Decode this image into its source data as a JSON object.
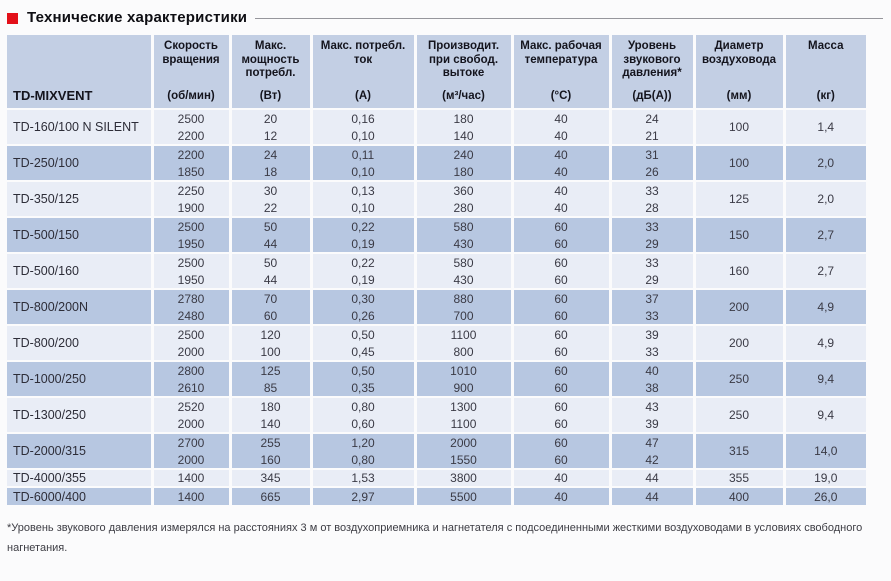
{
  "title": "Технические характеристики",
  "colors": {
    "accent_red": "#e31019",
    "header_bg": "#c3cfe4",
    "row_light": "#e9edf6",
    "row_dark": "#b7c7e1"
  },
  "table": {
    "first_col_header": "TD-MIXVENT",
    "columns": [
      {
        "title": "Скорость вращения",
        "unit": "(об/мин)"
      },
      {
        "title": "Макс. мощность потребл.",
        "unit": "(Вт)"
      },
      {
        "title": "Макс. потребл. ток",
        "unit": "(А)"
      },
      {
        "title": "Производит. при свобод. вытоке",
        "unit": "(м³/час)"
      },
      {
        "title": "Макс. рабочая температура",
        "unit": "(°C)"
      },
      {
        "title": "Уровень звукового давления*",
        "unit": "(дБ(А))"
      },
      {
        "title": "Диаметр воздуховода",
        "unit": "(мм)"
      },
      {
        "title": "Масса",
        "unit": "(кг)"
      }
    ],
    "groups": [
      {
        "model": "TD-160/100 N SILENT",
        "rows": [
          [
            "2500",
            "20",
            "0,16",
            "180",
            "40",
            "24"
          ],
          [
            "2200",
            "12",
            "0,10",
            "140",
            "40",
            "21"
          ]
        ],
        "diameter": "100",
        "mass": "1,4"
      },
      {
        "model": "TD-250/100",
        "rows": [
          [
            "2200",
            "24",
            "0,11",
            "240",
            "40",
            "31"
          ],
          [
            "1850",
            "18",
            "0,10",
            "180",
            "40",
            "26"
          ]
        ],
        "diameter": "100",
        "mass": "2,0"
      },
      {
        "model": "TD-350/125",
        "rows": [
          [
            "2250",
            "30",
            "0,13",
            "360",
            "40",
            "33"
          ],
          [
            "1900",
            "22",
            "0,10",
            "280",
            "40",
            "28"
          ]
        ],
        "diameter": "125",
        "mass": "2,0"
      },
      {
        "model": "TD-500/150",
        "rows": [
          [
            "2500",
            "50",
            "0,22",
            "580",
            "60",
            "33"
          ],
          [
            "1950",
            "44",
            "0,19",
            "430",
            "60",
            "29"
          ]
        ],
        "diameter": "150",
        "mass": "2,7"
      },
      {
        "model": "TD-500/160",
        "rows": [
          [
            "2500",
            "50",
            "0,22",
            "580",
            "60",
            "33"
          ],
          [
            "1950",
            "44",
            "0,19",
            "430",
            "60",
            "29"
          ]
        ],
        "diameter": "160",
        "mass": "2,7"
      },
      {
        "model": "TD-800/200N",
        "rows": [
          [
            "2780",
            "70",
            "0,30",
            "880",
            "60",
            "37"
          ],
          [
            "2480",
            "60",
            "0,26",
            "700",
            "60",
            "33"
          ]
        ],
        "diameter": "200",
        "mass": "4,9"
      },
      {
        "model": "TD-800/200",
        "rows": [
          [
            "2500",
            "120",
            "0,50",
            "1100",
            "60",
            "39"
          ],
          [
            "2000",
            "100",
            "0,45",
            "800",
            "60",
            "33"
          ]
        ],
        "diameter": "200",
        "mass": "4,9"
      },
      {
        "model": "TD-1000/250",
        "rows": [
          [
            "2800",
            "125",
            "0,50",
            "1010",
            "60",
            "40"
          ],
          [
            "2610",
            "85",
            "0,35",
            "900",
            "60",
            "38"
          ]
        ],
        "diameter": "250",
        "mass": "9,4"
      },
      {
        "model": "TD-1300/250",
        "rows": [
          [
            "2520",
            "180",
            "0,80",
            "1300",
            "60",
            "43"
          ],
          [
            "2000",
            "140",
            "0,60",
            "1100",
            "60",
            "39"
          ]
        ],
        "diameter": "250",
        "mass": "9,4"
      },
      {
        "model": "TD-2000/315",
        "rows": [
          [
            "2700",
            "255",
            "1,20",
            "2000",
            "60",
            "47"
          ],
          [
            "2000",
            "160",
            "0,80",
            "1550",
            "60",
            "42"
          ]
        ],
        "diameter": "315",
        "mass": "14,0"
      },
      {
        "model": "TD-4000/355",
        "rows": [
          [
            "1400",
            "345",
            "1,53",
            "3800",
            "40",
            "44"
          ]
        ],
        "diameter": "355",
        "mass": "19,0"
      },
      {
        "model": "TD-6000/400",
        "rows": [
          [
            "1400",
            "665",
            "2,97",
            "5500",
            "40",
            "44"
          ]
        ],
        "diameter": "400",
        "mass": "26,0"
      }
    ]
  },
  "footnote": "*Уровень звукового давления измерялся на расстояниях 3 м от воздухоприемника и нагнетателя с подсоединенными жесткими воздуховодами в условиях свободного нагнетания."
}
